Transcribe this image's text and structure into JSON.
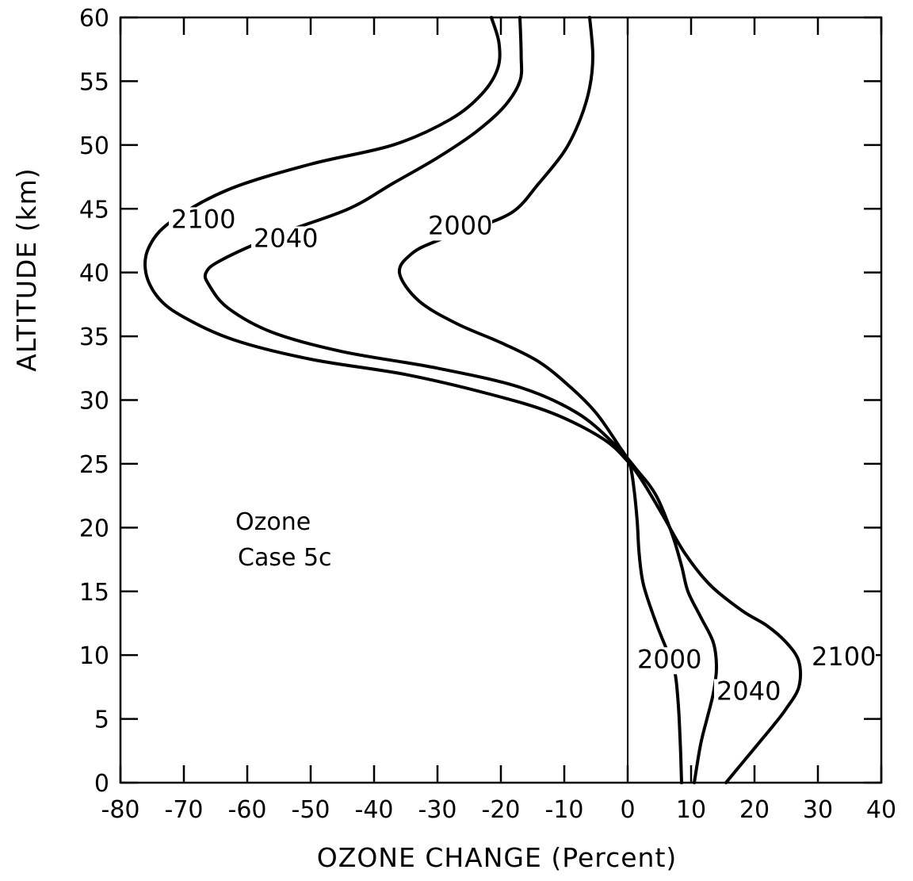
{
  "chart_data": {
    "type": "line",
    "title": "",
    "xlabel": "OZONE CHANGE (Percent)",
    "ylabel": "ALTITUDE (km)",
    "xlim": [
      -80,
      40
    ],
    "ylim": [
      0,
      60
    ],
    "x_ticks": [
      -80,
      -70,
      -60,
      -50,
      -40,
      -30,
      -20,
      -10,
      0,
      10,
      20,
      30,
      40
    ],
    "y_ticks": [
      0,
      5,
      10,
      15,
      20,
      25,
      30,
      35,
      40,
      45,
      50,
      55,
      60
    ],
    "x_tick_labels": [
      "-80",
      "-70",
      "-60",
      "-50",
      "-40",
      "-30",
      "-20",
      "-10",
      "0",
      "10",
      "20",
      "30",
      "40"
    ],
    "y_tick_labels": [
      "0",
      "5",
      "10",
      "15",
      "20",
      "25",
      "30",
      "35",
      "40",
      "45",
      "50",
      "55",
      "60"
    ],
    "grid": false,
    "annotation": [
      "Ozone",
      "Case 5c"
    ],
    "series": [
      {
        "name": "2000",
        "points": [
          [
            8.5,
            0
          ],
          [
            8.3,
            3
          ],
          [
            8.0,
            6
          ],
          [
            7.5,
            8.5
          ],
          [
            6.5,
            10
          ],
          [
            4.5,
            12.5
          ],
          [
            2.5,
            15.5
          ],
          [
            1.8,
            18
          ],
          [
            1.5,
            20.5
          ],
          [
            1.0,
            23
          ],
          [
            0.3,
            25
          ],
          [
            -1.5,
            26.5
          ],
          [
            -5,
            29
          ],
          [
            -9,
            31
          ],
          [
            -14,
            33
          ],
          [
            -20,
            34.5
          ],
          [
            -27,
            36
          ],
          [
            -33,
            37.8
          ],
          [
            -36,
            40
          ],
          [
            -34,
            41.5
          ],
          [
            -30,
            42.5
          ],
          [
            -24,
            43.5
          ],
          [
            -18,
            44.8
          ],
          [
            -14,
            47
          ],
          [
            -10,
            49.5
          ],
          [
            -7.5,
            52
          ],
          [
            -6,
            54.5
          ],
          [
            -5.5,
            57
          ],
          [
            -6,
            60
          ]
        ],
        "labels": [
          {
            "text": "2000",
            "x": 1.5,
            "y": 9
          },
          {
            "text": "2000",
            "x": -31.5,
            "y": 43
          }
        ]
      },
      {
        "name": "2040",
        "points": [
          [
            10.5,
            0
          ],
          [
            11.5,
            3
          ],
          [
            12.5,
            5
          ],
          [
            13.5,
            7
          ],
          [
            14,
            9
          ],
          [
            13.5,
            11
          ],
          [
            11.5,
            13
          ],
          [
            9.5,
            15
          ],
          [
            8.5,
            17
          ],
          [
            7,
            19.5
          ],
          [
            4.5,
            22.5
          ],
          [
            1.5,
            24.5
          ],
          [
            -2,
            26.5
          ],
          [
            -8,
            29
          ],
          [
            -17,
            31
          ],
          [
            -30,
            32.5
          ],
          [
            -45,
            33.8
          ],
          [
            -56,
            35.3
          ],
          [
            -63,
            37.2
          ],
          [
            -66,
            39
          ],
          [
            -66.5,
            40
          ],
          [
            -64,
            41
          ],
          [
            -55,
            43
          ],
          [
            -44,
            45
          ],
          [
            -37,
            47
          ],
          [
            -30,
            49
          ],
          [
            -24,
            51
          ],
          [
            -19.5,
            53
          ],
          [
            -17,
            55
          ],
          [
            -16.8,
            57
          ],
          [
            -17,
            60
          ]
        ],
        "labels": [
          {
            "text": "2040",
            "x": 14,
            "y": 6.5
          },
          {
            "text": "2040",
            "x": -59,
            "y": 42
          }
        ]
      },
      {
        "name": "2100",
        "points": [
          [
            15.5,
            0
          ],
          [
            18,
            1.5
          ],
          [
            20.5,
            3
          ],
          [
            23,
            4.5
          ],
          [
            25,
            5.8
          ],
          [
            27,
            7.5
          ],
          [
            27,
            9.5
          ],
          [
            25,
            11
          ],
          [
            22,
            12.3
          ],
          [
            18,
            13.5
          ],
          [
            13,
            15.5
          ],
          [
            9,
            18
          ],
          [
            5.5,
            21
          ],
          [
            2.5,
            23.5
          ],
          [
            0,
            25.2
          ],
          [
            -4,
            27
          ],
          [
            -12,
            29
          ],
          [
            -22,
            30.5
          ],
          [
            -35,
            32
          ],
          [
            -50,
            33.2
          ],
          [
            -62,
            34.7
          ],
          [
            -70,
            36.5
          ],
          [
            -74,
            38
          ],
          [
            -76,
            40
          ],
          [
            -75.5,
            42
          ],
          [
            -72,
            44
          ],
          [
            -63,
            46.5
          ],
          [
            -50,
            48.5
          ],
          [
            -37,
            50
          ],
          [
            -28,
            52
          ],
          [
            -23,
            54
          ],
          [
            -20.5,
            56
          ],
          [
            -20.3,
            58
          ],
          [
            -21.5,
            60
          ]
        ],
        "labels": [
          {
            "text": "2100",
            "x": 29,
            "y": 9.2
          },
          {
            "text": "2100",
            "x": -72,
            "y": 43.5
          }
        ]
      }
    ]
  }
}
